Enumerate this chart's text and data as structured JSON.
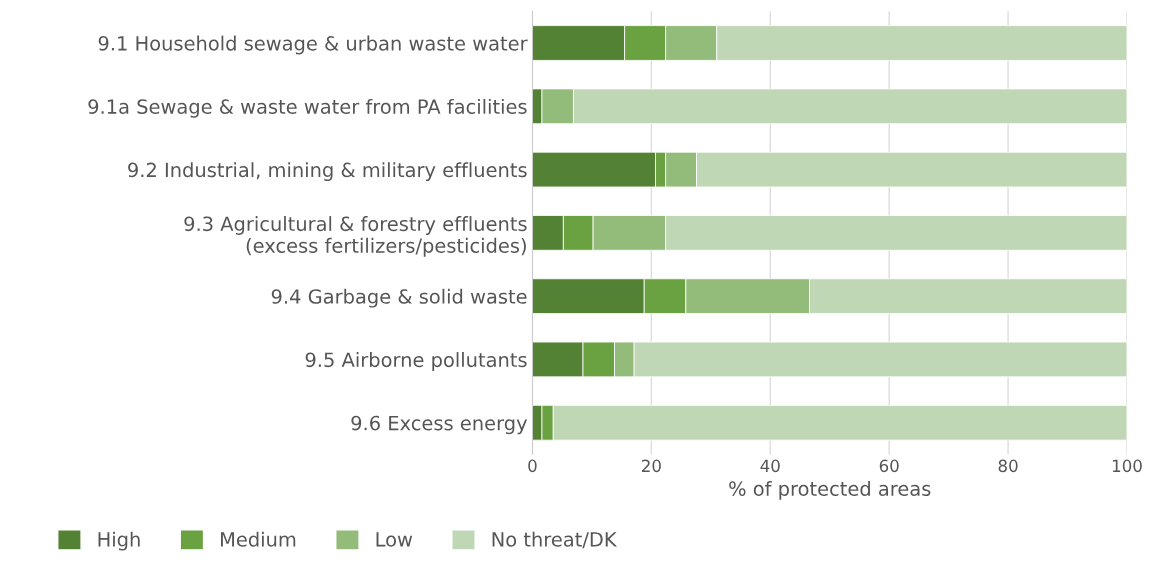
{
  "chart_data": {
    "type": "bar",
    "orientation": "horizontal",
    "stacked": true,
    "categories": [
      "9.1 Household sewage & urban waste water",
      "9.1a Sewage & waste water from PA facilities",
      "9.2 Industrial, mining & military effluents",
      "9.3 Agricultural & forestry effluents\n(excess fertilizers/pesticides)",
      "9.4 Garbage & solid waste",
      "9.5 Airborne pollutants",
      "9.6 Excess energy"
    ],
    "series": [
      {
        "name": "High",
        "color": "#548235",
        "values": [
          15.5,
          1.6,
          20.7,
          5.2,
          18.8,
          8.5,
          1.6
        ]
      },
      {
        "name": "Medium",
        "color": "#6aa141",
        "values": [
          6.9,
          0,
          1.7,
          5.0,
          7.0,
          5.3,
          1.9
        ]
      },
      {
        "name": "Low",
        "color": "#93bc7a",
        "values": [
          8.6,
          5.3,
          5.2,
          12.2,
          20.8,
          3.3,
          0
        ]
      },
      {
        "name": "No threat/DK",
        "color": "#bfd7b4",
        "values": [
          69.0,
          93.1,
          72.4,
          77.6,
          53.4,
          82.9,
          96.5
        ]
      }
    ],
    "xlabel": "% of protected areas",
    "xlim": [
      0,
      100
    ],
    "xticks": [
      0,
      20,
      40,
      60,
      80,
      100
    ],
    "grid": "x",
    "legend": "bottom"
  }
}
